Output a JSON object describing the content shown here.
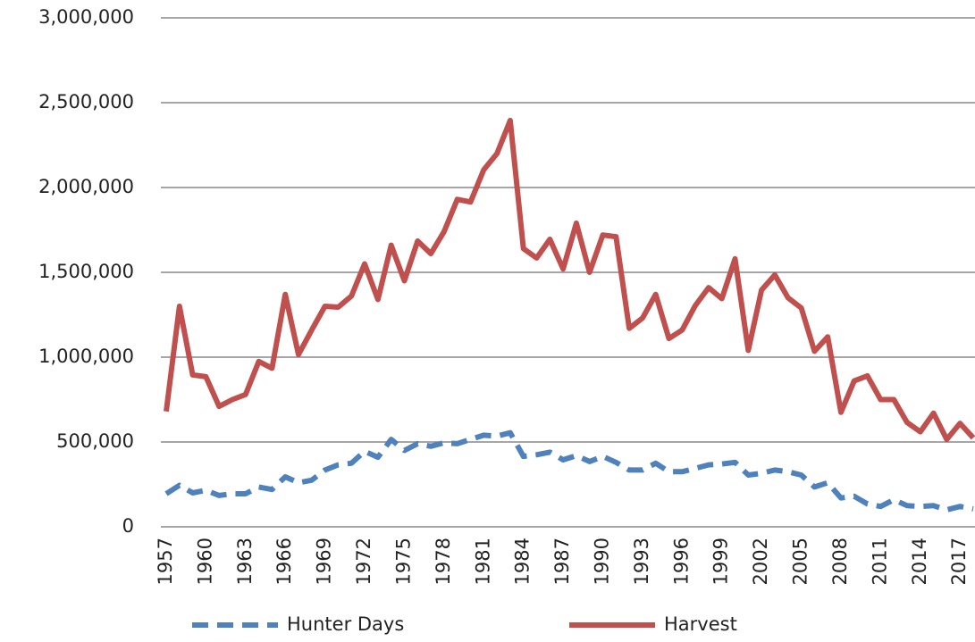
{
  "chart_data": {
    "type": "line",
    "x": [
      1957,
      1958,
      1959,
      1960,
      1961,
      1962,
      1963,
      1964,
      1965,
      1966,
      1967,
      1968,
      1969,
      1970,
      1971,
      1972,
      1973,
      1974,
      1975,
      1976,
      1977,
      1978,
      1979,
      1980,
      1981,
      1982,
      1983,
      1984,
      1985,
      1986,
      1987,
      1988,
      1989,
      1990,
      1991,
      1992,
      1993,
      1994,
      1995,
      1996,
      1997,
      1998,
      1999,
      2000,
      2001,
      2002,
      2003,
      2004,
      2005,
      2006,
      2007,
      2008,
      2009,
      2010,
      2011,
      2012,
      2013,
      2014,
      2015,
      2016,
      2017,
      2018
    ],
    "series": [
      {
        "name": "Hunter Days",
        "color": "#4f81bd",
        "dash": true,
        "values": [
          195000,
          245000,
          200000,
          215000,
          185000,
          195000,
          195000,
          235000,
          220000,
          295000,
          260000,
          275000,
          335000,
          365000,
          375000,
          445000,
          410000,
          515000,
          450000,
          490000,
          475000,
          495000,
          490000,
          515000,
          540000,
          535000,
          555000,
          415000,
          425000,
          440000,
          395000,
          420000,
          385000,
          415000,
          380000,
          335000,
          335000,
          375000,
          325000,
          325000,
          345000,
          365000,
          370000,
          380000,
          305000,
          315000,
          335000,
          325000,
          305000,
          235000,
          260000,
          170000,
          180000,
          135000,
          120000,
          160000,
          125000,
          120000,
          125000,
          100000,
          120000,
          105000
        ]
      },
      {
        "name": "Harvest",
        "color": "#c0504d",
        "dash": false,
        "values": [
          680000,
          1300000,
          895000,
          885000,
          710000,
          750000,
          780000,
          975000,
          935000,
          1370000,
          1015000,
          1160000,
          1300000,
          1295000,
          1360000,
          1550000,
          1340000,
          1660000,
          1450000,
          1685000,
          1610000,
          1740000,
          1930000,
          1915000,
          2105000,
          2200000,
          2395000,
          1640000,
          1585000,
          1695000,
          1520000,
          1790000,
          1500000,
          1720000,
          1710000,
          1170000,
          1230000,
          1370000,
          1110000,
          1160000,
          1305000,
          1410000,
          1345000,
          1580000,
          1040000,
          1395000,
          1485000,
          1350000,
          1290000,
          1035000,
          1120000,
          675000,
          860000,
          890000,
          750000,
          750000,
          615000,
          560000,
          670000,
          515000,
          610000,
          525000
        ]
      }
    ],
    "xlim": [
      1957,
      2018
    ],
    "xticks": [
      1957,
      1960,
      1963,
      1966,
      1969,
      1972,
      1975,
      1978,
      1981,
      1984,
      1987,
      1990,
      1993,
      1996,
      1999,
      2002,
      2005,
      2008,
      2011,
      2014,
      2017
    ],
    "ylim": [
      0,
      3000000
    ],
    "yticks": [
      0,
      {
        "value": 500000,
        "label": "500,000"
      },
      {
        "value": 1000000,
        "label": "1,000,000"
      },
      {
        "value": 1500000,
        "label": "1,500,000"
      },
      {
        "value": 2000000,
        "label": "2,000,000"
      },
      {
        "value": 2500000,
        "label": "2,500,000"
      },
      {
        "value": 3000000,
        "label": "3,000,000"
      }
    ],
    "grid": true,
    "legend": "bottom"
  }
}
